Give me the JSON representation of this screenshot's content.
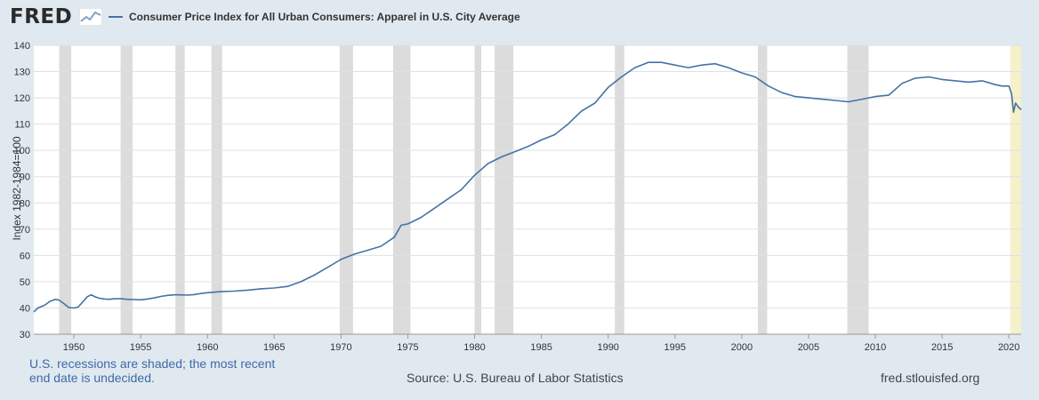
{
  "header": {
    "logo_text": "FRED",
    "logo_icon": "line-chart-icon"
  },
  "legend": {
    "label": "Consumer Price Index for All Urban Consumers: Apparel in U.S. City Average"
  },
  "footer": {
    "note": "U.S. recessions are shaded; the most recent end date is undecided.",
    "source": "Source: U.S. Bureau of Labor Statistics",
    "credit": "fred.stlouisfed.org"
  },
  "chart_data": {
    "type": "line",
    "title": "",
    "xlabel": "",
    "ylabel": "Index 1982-1984=100",
    "xlim": [
      1947,
      2020.92
    ],
    "ylim": [
      30,
      140
    ],
    "yticks": [
      30,
      40,
      50,
      60,
      70,
      80,
      90,
      100,
      110,
      120,
      130,
      140
    ],
    "xticks": [
      1950,
      1955,
      1960,
      1965,
      1970,
      1975,
      1980,
      1985,
      1990,
      1995,
      2000,
      2005,
      2010,
      2015,
      2020
    ],
    "grid": true,
    "legend_position": "top-left",
    "colors": {
      "line": "#4572a7",
      "recession": "#dcdcdc",
      "recent_recession": "#f5f1c9",
      "background": "#e1e9f0",
      "plot": "#ffffff"
    },
    "recessions": [
      [
        1948.9,
        1949.8
      ],
      [
        1953.5,
        1954.4
      ],
      [
        1957.6,
        1958.3
      ],
      [
        1960.3,
        1961.1
      ],
      [
        1969.9,
        1970.9
      ],
      [
        1973.9,
        1975.2
      ],
      [
        1980.0,
        1980.5
      ],
      [
        1981.5,
        1982.9
      ],
      [
        1990.5,
        1991.2
      ],
      [
        2001.2,
        2001.9
      ],
      [
        2007.9,
        2009.5
      ]
    ],
    "recent_recession": [
      2020.1,
      2020.92
    ],
    "series": [
      {
        "name": "Consumer Price Index for All Urban Consumers: Apparel in U.S. City Average",
        "x": [
          1947.0,
          1947.3,
          1947.8,
          1948.2,
          1948.6,
          1948.9,
          1949.3,
          1949.6,
          1950.0,
          1950.3,
          1950.7,
          1951.0,
          1951.3,
          1951.6,
          1951.9,
          1952.3,
          1952.7,
          1953.0,
          1953.5,
          1954.0,
          1954.5,
          1955.0,
          1955.5,
          1956.0,
          1956.5,
          1957.0,
          1957.5,
          1958.0,
          1958.5,
          1959.0,
          1959.5,
          1960.0,
          1960.5,
          1961.0,
          1962.0,
          1963.0,
          1964.0,
          1965.0,
          1966.0,
          1967.0,
          1968.0,
          1969.0,
          1970.0,
          1971.0,
          1972.0,
          1973.0,
          1974.0,
          1974.5,
          1975.0,
          1976.0,
          1977.0,
          1978.0,
          1979.0,
          1980.0,
          1981.0,
          1982.0,
          1983.0,
          1984.0,
          1985.0,
          1986.0,
          1987.0,
          1988.0,
          1989.0,
          1990.0,
          1991.0,
          1992.0,
          1993.0,
          1994.0,
          1995.0,
          1996.0,
          1997.0,
          1998.0,
          1999.0,
          2000.0,
          2001.0,
          2002.0,
          2003.0,
          2004.0,
          2005.0,
          2006.0,
          2007.0,
          2008.0,
          2009.0,
          2010.0,
          2011.0,
          2012.0,
          2013.0,
          2014.0,
          2015.0,
          2016.0,
          2017.0,
          2018.0,
          2019.0,
          2019.5,
          2020.0,
          2020.2,
          2020.35,
          2020.5,
          2020.7,
          2020.92
        ],
        "y": [
          38.5,
          40.0,
          41.0,
          42.5,
          43.3,
          43.0,
          41.5,
          40.2,
          40.0,
          40.3,
          42.5,
          44.3,
          45.0,
          44.2,
          43.7,
          43.4,
          43.3,
          43.5,
          43.5,
          43.3,
          43.2,
          43.1,
          43.4,
          43.8,
          44.4,
          44.8,
          45.0,
          45.0,
          44.9,
          45.1,
          45.5,
          45.8,
          46.0,
          46.2,
          46.4,
          46.8,
          47.3,
          47.6,
          48.2,
          50.0,
          52.5,
          55.5,
          58.5,
          60.5,
          62.0,
          63.5,
          67.0,
          71.5,
          72.0,
          74.5,
          78.0,
          81.5,
          85.0,
          90.5,
          95.0,
          97.5,
          99.5,
          101.5,
          104.0,
          106.0,
          110.0,
          115.0,
          118.0,
          124.0,
          128.0,
          131.5,
          133.5,
          133.5,
          132.5,
          131.5,
          132.5,
          133.0,
          131.5,
          129.5,
          128.0,
          124.5,
          122.0,
          120.5,
          120.0,
          119.5,
          119.0,
          118.5,
          119.5,
          120.5,
          121.0,
          125.5,
          127.5,
          128.0,
          127.0,
          126.5,
          126.0,
          126.5,
          125.0,
          124.5,
          124.5,
          121.5,
          114.5,
          118.0,
          116.5,
          115.5
        ]
      }
    ]
  }
}
